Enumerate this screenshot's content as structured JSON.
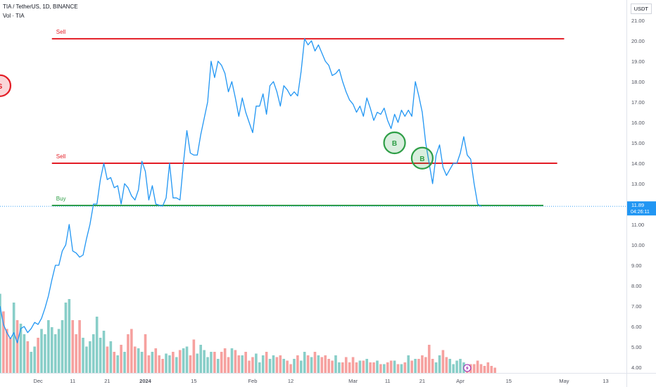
{
  "header": {
    "title": "TIA / TetherUS, 1D, BINANCE",
    "volume_label": "Vol · TIA",
    "currency": "USDT"
  },
  "price_tag": {
    "price": "11.89",
    "countdown": "04:26:11"
  },
  "colors": {
    "price_line": "#2196f3",
    "sell_line": "#e31c25",
    "buy_line": "#2e9e46",
    "vol_up": "#26a69a",
    "vol_down": "#ef5350",
    "grid": "#f0f3fa",
    "axis_text": "#50535e"
  },
  "chart_data": {
    "type": "line",
    "title": "TIA / TetherUS, 1D, BINANCE",
    "xlabel": "",
    "ylabel": "",
    "ylim": [
      3.7,
      21.5
    ],
    "y_scale": "linear",
    "y_ticks": [
      "4.00",
      "5.00",
      "6.00",
      "7.00",
      "8.00",
      "9.00",
      "10.00",
      "11.00",
      "12.00",
      "13.00",
      "14.00",
      "15.00",
      "16.00",
      "17.00",
      "18.00",
      "19.00",
      "20.00",
      "21.00"
    ],
    "x_ticks": [
      "Dec",
      "11",
      "21",
      "2024",
      "15",
      "Feb",
      "12",
      "Mar",
      "11",
      "21",
      "Apr",
      "15",
      "May",
      "13"
    ],
    "x_tick_dates": [
      "2023-12-01",
      "2023-12-11",
      "2023-12-21",
      "2024-01-01",
      "2024-01-15",
      "2024-02-01",
      "2024-02-12",
      "2024-03-01",
      "2024-03-11",
      "2024-03-21",
      "2024-04-01",
      "2024-04-15",
      "2024-05-01",
      "2024-05-13"
    ],
    "x_range": [
      "2023-11-20",
      "2024-05-19"
    ],
    "grid": false,
    "series": [
      {
        "start": "2023-11-20",
        "interval": "1D",
        "values": [
          7.0,
          6.1,
          5.7,
          5.4,
          5.7,
          5.2,
          5.9,
          6.0,
          5.7,
          5.9,
          6.2,
          6.1,
          6.4,
          6.9,
          7.5,
          8.3,
          9.0,
          9.0,
          9.7,
          10.0,
          11.0,
          9.7,
          9.6,
          9.4,
          9.5,
          10.3,
          11.0,
          12.0,
          12.0,
          13.2,
          14.0,
          13.2,
          13.3,
          12.8,
          12.9,
          12.0,
          13.0,
          12.8,
          12.4,
          12.2,
          12.7,
          14.1,
          13.6,
          12.2,
          12.9,
          12.0,
          11.95,
          11.9,
          12.3,
          14.0,
          12.3,
          12.3,
          12.2,
          14.0,
          15.6,
          14.5,
          14.4,
          14.4,
          15.4,
          16.2,
          17.0,
          19.0,
          18.2,
          19.0,
          18.8,
          18.4,
          17.5,
          18.0,
          17.2,
          16.3,
          17.2,
          16.5,
          16.0,
          15.5,
          16.8,
          16.8,
          17.4,
          16.4,
          17.8,
          18.0,
          17.5,
          16.8,
          17.8,
          17.6,
          17.3,
          17.5,
          17.3,
          18.5,
          20.1,
          19.8,
          20.0,
          19.5,
          19.8,
          19.4,
          19.0,
          18.8,
          18.3,
          18.4,
          18.6,
          18.0,
          17.5,
          17.1,
          16.9,
          16.5,
          16.8,
          16.3,
          17.2,
          16.7,
          16.1,
          16.5,
          16.4,
          16.7,
          16.1,
          15.7,
          16.4,
          16.0,
          16.6,
          16.3,
          16.6,
          16.3,
          18.0,
          17.3,
          16.5,
          15.0,
          14.0,
          13.0,
          14.4,
          14.9,
          13.8,
          13.4,
          13.7,
          14.0,
          14.0,
          14.5,
          15.3,
          14.4,
          14.2,
          13.0,
          12.0,
          11.89
        ]
      }
    ],
    "volume_series": {
      "name": "Vol · TIA",
      "start": "2023-11-20",
      "interval": "1D",
      "values": [
        0.45,
        0.35,
        0.25,
        0.2,
        0.4,
        0.3,
        0.28,
        0.22,
        0.18,
        0.12,
        0.15,
        0.2,
        0.25,
        0.22,
        0.3,
        0.26,
        0.22,
        0.25,
        0.3,
        0.4,
        0.42,
        0.3,
        0.22,
        0.3,
        0.2,
        0.15,
        0.18,
        0.22,
        0.32,
        0.2,
        0.24,
        0.15,
        0.18,
        0.12,
        0.1,
        0.16,
        0.12,
        0.22,
        0.25,
        0.15,
        0.14,
        0.12,
        0.22,
        0.1,
        0.12,
        0.14,
        0.1,
        0.08,
        0.11,
        0.1,
        0.12,
        0.09,
        0.13,
        0.14,
        0.15,
        0.1,
        0.19,
        0.11,
        0.16,
        0.13,
        0.09,
        0.12,
        0.12,
        0.08,
        0.12,
        0.14,
        0.09,
        0.14,
        0.13,
        0.1,
        0.1,
        0.12,
        0.07,
        0.09,
        0.11,
        0.06,
        0.1,
        0.12,
        0.08,
        0.1,
        0.09,
        0.1,
        0.08,
        0.07,
        0.05,
        0.08,
        0.1,
        0.07,
        0.12,
        0.1,
        0.09,
        0.12,
        0.1,
        0.09,
        0.1,
        0.08,
        0.07,
        0.1,
        0.06,
        0.06,
        0.09,
        0.06,
        0.09,
        0.06,
        0.07,
        0.07,
        0.08,
        0.06,
        0.06,
        0.07,
        0.05,
        0.05,
        0.06,
        0.07,
        0.07,
        0.05,
        0.05,
        0.06,
        0.1,
        0.07,
        0.08,
        0.08,
        0.1,
        0.09,
        0.16,
        0.08,
        0.06,
        0.1,
        0.13,
        0.09,
        0.08,
        0.05,
        0.07,
        0.08,
        0.06,
        0.04,
        0.05,
        0.05,
        0.07,
        0.05,
        0.04,
        0.06,
        0.04,
        0.03
      ]
    },
    "levels": [
      {
        "label": "Sell",
        "value": 20.1,
        "start": "2023-12-05",
        "end": "2024-05-01",
        "color": "#e31c25"
      },
      {
        "label": "Sell",
        "value": 14.0,
        "start": "2023-12-05",
        "end": "2024-04-29",
        "color": "#e31c25"
      },
      {
        "label": "Buy",
        "value": 11.93,
        "start": "2023-12-05",
        "end": "2024-04-25",
        "color": "#2e9e46"
      }
    ],
    "markers": [
      {
        "label": "S",
        "date": "2023-11-20",
        "value": 17.8,
        "color": "#e31c25"
      },
      {
        "label": "B",
        "date": "2024-03-13",
        "value": 15.0,
        "color": "#2e9e46"
      },
      {
        "label": "B",
        "date": "2024-03-21",
        "value": 14.25,
        "color": "#2e9e46"
      }
    ],
    "last_price": 11.89
  }
}
